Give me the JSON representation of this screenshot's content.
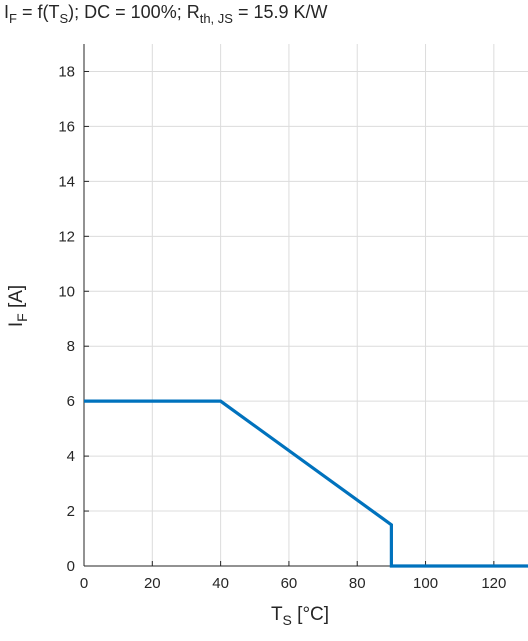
{
  "title": {
    "l1": "I",
    "s1": "F",
    "l2": " = f(T",
    "s2": "S",
    "l3": "); DC = 100%; R",
    "s3": "th, JS",
    "l4": " = 15.9 K/W"
  },
  "ylabel": {
    "main": "I",
    "sub": "F",
    "unit": " [A]"
  },
  "xlabel": {
    "main": "T",
    "sub": "S",
    "unit": " [°C]"
  },
  "colors": {
    "line": "#0072bd",
    "grid": "#dcdcdc",
    "axis": "#262626"
  },
  "chart_data": {
    "type": "line",
    "grid": true,
    "xlim": [
      0,
      130
    ],
    "ylim": [
      0,
      19
    ],
    "xticks": [
      0,
      20,
      40,
      60,
      80,
      100,
      120
    ],
    "yticks": [
      0,
      2,
      4,
      6,
      8,
      10,
      12,
      14,
      16,
      18
    ],
    "series": [
      {
        "x": [
          0,
          40,
          90,
          90,
          130
        ],
        "y": [
          6,
          6,
          1.5,
          0,
          0
        ]
      }
    ]
  }
}
